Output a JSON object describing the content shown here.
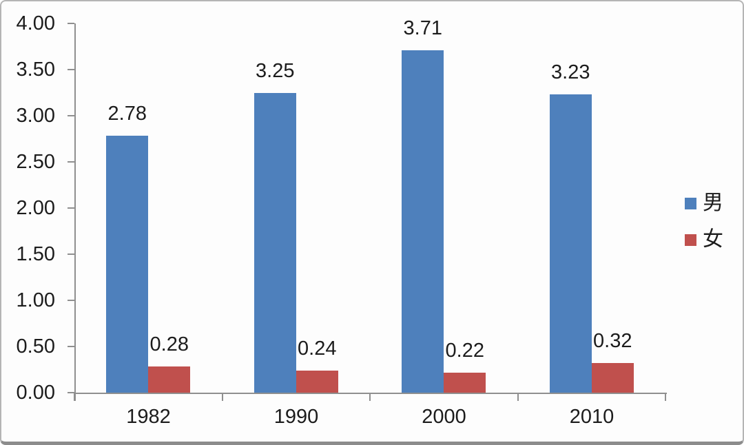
{
  "chart_data": {
    "type": "bar",
    "title": "",
    "xlabel": "",
    "ylabel": "",
    "categories": [
      "1982",
      "1990",
      "2000",
      "2010"
    ],
    "series": [
      {
        "name": "男",
        "color": "#4E80BC",
        "values": [
          2.78,
          3.25,
          3.71,
          3.23
        ],
        "labels": [
          "2.78",
          "3.25",
          "3.71",
          "3.23"
        ]
      },
      {
        "name": "女",
        "color": "#C0504D",
        "values": [
          0.28,
          0.24,
          0.22,
          0.32
        ],
        "labels": [
          "0.28",
          "0.24",
          "0.22",
          "0.32"
        ]
      }
    ],
    "ylim": [
      0,
      4
    ],
    "ytick_step": 0.5,
    "ytick_labels": [
      "0.00",
      "0.50",
      "1.00",
      "1.50",
      "2.00",
      "2.50",
      "3.00",
      "3.50",
      "4.00"
    ],
    "grid": false,
    "legend_position": "right",
    "axis_color": "#8f8f8f",
    "text_color": "#1c1c1c",
    "frame_border_color": "#b5b5b5",
    "frame_bottom_border_color": "#8c8c8c"
  }
}
